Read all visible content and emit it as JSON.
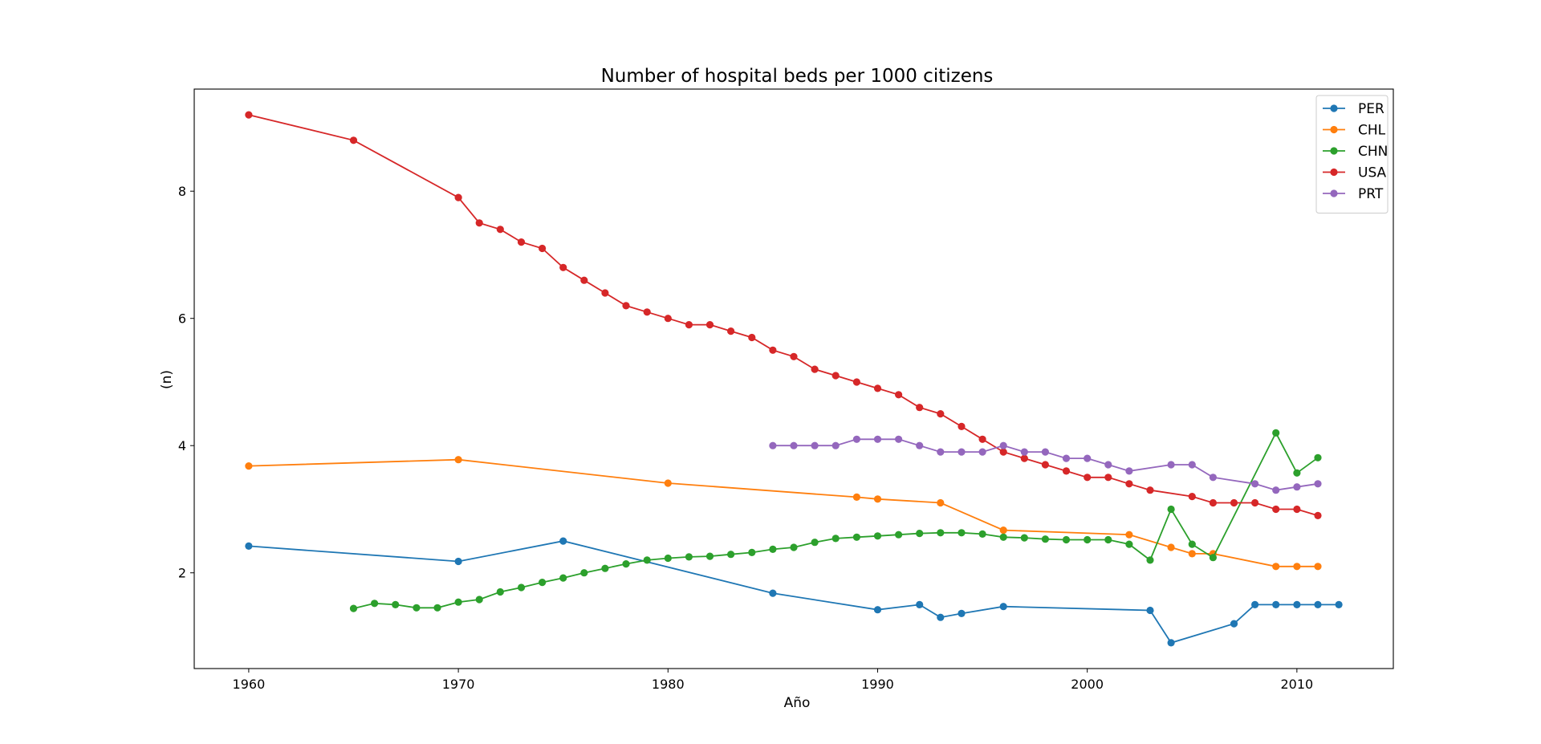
{
  "chart_data": {
    "type": "line",
    "title": "Number of hospital beds per 1000 citizens",
    "xlabel": "Año",
    "ylabel": "(n)",
    "xlim": [
      1957.4,
      2014.6
    ],
    "ylim": [
      0.495,
      9.605
    ],
    "xticks": [
      1960,
      1970,
      1980,
      1990,
      2000,
      2010
    ],
    "yticks": [
      2,
      4,
      6,
      8
    ],
    "grid": false,
    "legend_position": "top-right",
    "series": [
      {
        "name": "PER",
        "color": "#1f77b4",
        "points": [
          [
            1960,
            2.42
          ],
          [
            1970,
            2.18
          ],
          [
            1975,
            2.5
          ],
          [
            1985,
            1.68
          ],
          [
            1990,
            1.42
          ],
          [
            1992,
            1.5
          ],
          [
            1993,
            1.3
          ],
          [
            1994,
            1.36
          ],
          [
            1996,
            1.47
          ],
          [
            2003,
            1.41
          ],
          [
            2004,
            0.9
          ],
          [
            2007,
            1.2
          ],
          [
            2008,
            1.5
          ],
          [
            2009,
            1.5
          ],
          [
            2010,
            1.5
          ],
          [
            2011,
            1.5
          ],
          [
            2012,
            1.5
          ]
        ]
      },
      {
        "name": "CHL",
        "color": "#ff7f0e",
        "points": [
          [
            1960,
            3.68
          ],
          [
            1970,
            3.78
          ],
          [
            1980,
            3.41
          ],
          [
            1989,
            3.19
          ],
          [
            1990,
            3.16
          ],
          [
            1993,
            3.1
          ],
          [
            1996,
            2.67
          ],
          [
            2002,
            2.6
          ],
          [
            2004,
            2.4
          ],
          [
            2005,
            2.3
          ],
          [
            2006,
            2.3
          ],
          [
            2009,
            2.1
          ],
          [
            2010,
            2.1
          ],
          [
            2011,
            2.1
          ]
        ]
      },
      {
        "name": "CHN",
        "color": "#2ca02c",
        "points": [
          [
            1965,
            1.44
          ],
          [
            1966,
            1.52
          ],
          [
            1967,
            1.5
          ],
          [
            1968,
            1.45
          ],
          [
            1969,
            1.45
          ],
          [
            1970,
            1.54
          ],
          [
            1971,
            1.58
          ],
          [
            1972,
            1.7
          ],
          [
            1973,
            1.77
          ],
          [
            1974,
            1.85
          ],
          [
            1975,
            1.92
          ],
          [
            1976,
            2.0
          ],
          [
            1977,
            2.07
          ],
          [
            1978,
            2.14
          ],
          [
            1979,
            2.2
          ],
          [
            1980,
            2.23
          ],
          [
            1981,
            2.25
          ],
          [
            1982,
            2.26
          ],
          [
            1983,
            2.29
          ],
          [
            1984,
            2.32
          ],
          [
            1985,
            2.37
          ],
          [
            1986,
            2.4
          ],
          [
            1987,
            2.48
          ],
          [
            1988,
            2.54
          ],
          [
            1989,
            2.56
          ],
          [
            1990,
            2.58
          ],
          [
            1991,
            2.6
          ],
          [
            1992,
            2.62
          ],
          [
            1993,
            2.63
          ],
          [
            1994,
            2.63
          ],
          [
            1995,
            2.61
          ],
          [
            1996,
            2.56
          ],
          [
            1997,
            2.55
          ],
          [
            1998,
            2.53
          ],
          [
            1999,
            2.52
          ],
          [
            2000,
            2.52
          ],
          [
            2001,
            2.52
          ],
          [
            2002,
            2.45
          ],
          [
            2003,
            2.2
          ],
          [
            2004,
            3.0
          ],
          [
            2005,
            2.45
          ],
          [
            2006,
            2.24
          ],
          [
            2009,
            4.2
          ],
          [
            2010,
            3.57
          ],
          [
            2011,
            3.81
          ]
        ]
      },
      {
        "name": "USA",
        "color": "#d62728",
        "points": [
          [
            1960,
            9.2
          ],
          [
            1965,
            8.8
          ],
          [
            1970,
            7.9
          ],
          [
            1971,
            7.5
          ],
          [
            1972,
            7.4
          ],
          [
            1973,
            7.2
          ],
          [
            1974,
            7.1
          ],
          [
            1975,
            6.8
          ],
          [
            1976,
            6.6
          ],
          [
            1977,
            6.4
          ],
          [
            1978,
            6.2
          ],
          [
            1979,
            6.1
          ],
          [
            1980,
            6.0
          ],
          [
            1981,
            5.9
          ],
          [
            1982,
            5.9
          ],
          [
            1983,
            5.8
          ],
          [
            1984,
            5.7
          ],
          [
            1985,
            5.5
          ],
          [
            1986,
            5.4
          ],
          [
            1987,
            5.2
          ],
          [
            1988,
            5.1
          ],
          [
            1989,
            5.0
          ],
          [
            1990,
            4.9
          ],
          [
            1991,
            4.8
          ],
          [
            1992,
            4.6
          ],
          [
            1993,
            4.5
          ],
          [
            1994,
            4.3
          ],
          [
            1995,
            4.1
          ],
          [
            1996,
            3.9
          ],
          [
            1997,
            3.8
          ],
          [
            1998,
            3.7
          ],
          [
            1999,
            3.6
          ],
          [
            2000,
            3.5
          ],
          [
            2001,
            3.5
          ],
          [
            2002,
            3.4
          ],
          [
            2003,
            3.3
          ],
          [
            2005,
            3.2
          ],
          [
            2006,
            3.1
          ],
          [
            2007,
            3.1
          ],
          [
            2008,
            3.1
          ],
          [
            2009,
            3.0
          ],
          [
            2010,
            3.0
          ],
          [
            2011,
            2.9
          ]
        ]
      },
      {
        "name": "PRT",
        "color": "#9467bd",
        "points": [
          [
            1985,
            4.0
          ],
          [
            1986,
            4.0
          ],
          [
            1987,
            4.0
          ],
          [
            1988,
            4.0
          ],
          [
            1989,
            4.1
          ],
          [
            1990,
            4.1
          ],
          [
            1991,
            4.1
          ],
          [
            1992,
            4.0
          ],
          [
            1993,
            3.9
          ],
          [
            1994,
            3.9
          ],
          [
            1995,
            3.9
          ],
          [
            1996,
            4.0
          ],
          [
            1997,
            3.9
          ],
          [
            1998,
            3.9
          ],
          [
            1999,
            3.8
          ],
          [
            2000,
            3.8
          ],
          [
            2001,
            3.7
          ],
          [
            2002,
            3.6
          ],
          [
            2004,
            3.7
          ],
          [
            2005,
            3.7
          ],
          [
            2006,
            3.5
          ],
          [
            2008,
            3.4
          ],
          [
            2009,
            3.3
          ],
          [
            2010,
            3.35
          ],
          [
            2011,
            3.4
          ]
        ]
      }
    ]
  }
}
